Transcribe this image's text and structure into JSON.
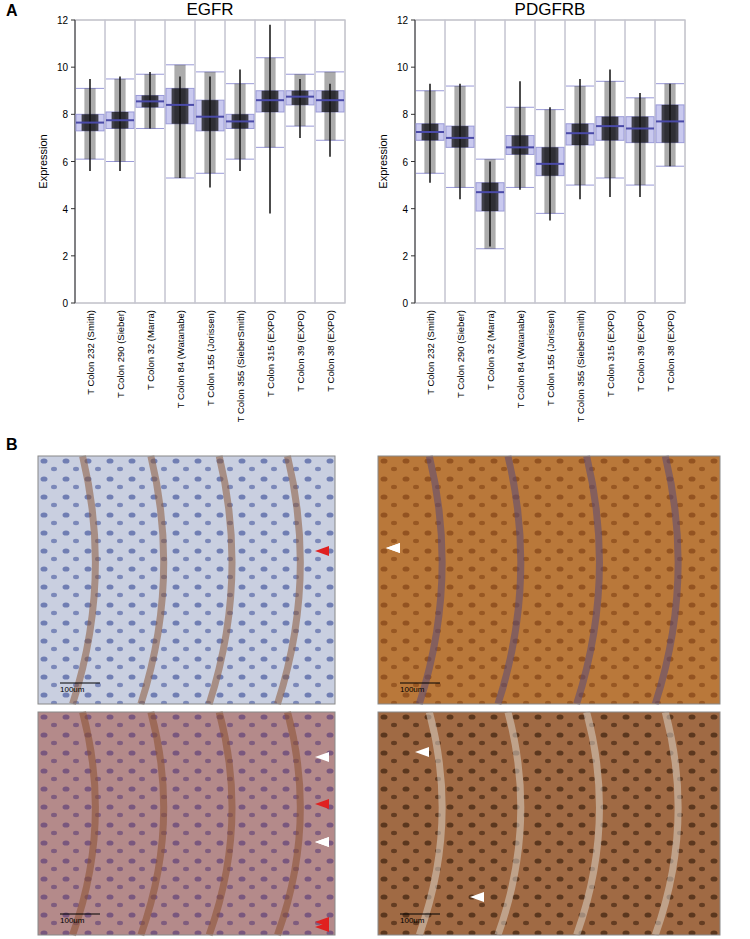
{
  "panel_labels": [
    "A",
    "B"
  ],
  "chart_data": [
    {
      "type": "box",
      "title": "EGFR",
      "y_label": "Expression",
      "categories": [
        "T Colon 232 (Smith)",
        "T Colon 290 (Sieber)",
        "T Colon 32 (Marra)",
        "T Colon 84 (Watanabe)",
        "T Colon 155 (Jorissen)",
        "T Colon 355 (SieberSmith)",
        "T Colon 315 (EXPO)",
        "T Colon 39 (EXPO)",
        "T Colon 38 (EXPO)"
      ],
      "color": "#c9c9ef",
      "ylim": [
        0,
        12
      ],
      "yticks": [
        0,
        2,
        4,
        6,
        8,
        10,
        12
      ],
      "boxes": {
        "median": [
          7.65,
          7.75,
          8.55,
          8.4,
          7.9,
          7.7,
          8.6,
          8.75,
          8.6
        ],
        "q1": [
          7.3,
          7.4,
          8.3,
          7.6,
          7.3,
          7.4,
          8.1,
          8.4,
          8.1
        ],
        "q3": [
          8.0,
          8.1,
          8.8,
          9.1,
          8.6,
          8.0,
          9.0,
          9.0,
          9.0
        ],
        "low": [
          6.1,
          6.0,
          7.4,
          5.3,
          5.5,
          6.1,
          6.6,
          7.5,
          6.9
        ],
        "high": [
          9.1,
          9.5,
          9.7,
          10.1,
          9.8,
          9.3,
          10.4,
          9.7,
          9.8
        ],
        "min": [
          5.6,
          5.6,
          7.4,
          5.3,
          4.9,
          5.6,
          3.8,
          7.0,
          6.2
        ],
        "max": [
          9.5,
          9.6,
          9.8,
          9.6,
          9.6,
          9.9,
          11.8,
          9.5,
          9.3
        ]
      }
    },
    {
      "type": "box",
      "title": "PDGFRB",
      "y_label": "Expression",
      "categories": [
        "T Colon 232 (Smith)",
        "T Colon 290 (Sieber)",
        "T Colon 32 (Marra)",
        "T Colon 84 (Watanabe)",
        "T Colon 155 (Jorissen)",
        "T Colon 355 (SieberSmith)",
        "T Colon 315 (EXPO)",
        "T Colon 39 (EXPO)",
        "T Colon 38 (EXPO)"
      ],
      "color": "#c9c9ef",
      "ylim": [
        0,
        12
      ],
      "yticks": [
        0,
        2,
        4,
        6,
        8,
        10,
        12
      ],
      "boxes": {
        "median": [
          7.25,
          7.0,
          4.7,
          6.6,
          5.9,
          7.2,
          7.5,
          7.4,
          7.7
        ],
        "q1": [
          6.9,
          6.6,
          3.9,
          6.3,
          5.4,
          6.7,
          6.9,
          6.8,
          6.8
        ],
        "q3": [
          7.6,
          7.5,
          5.1,
          7.1,
          6.6,
          7.6,
          7.9,
          7.9,
          8.4
        ],
        "low": [
          5.5,
          4.9,
          2.3,
          4.9,
          3.8,
          5.0,
          5.3,
          5.0,
          5.8
        ],
        "high": [
          9.0,
          9.2,
          6.1,
          8.3,
          8.2,
          9.2,
          9.4,
          8.7,
          9.3
        ],
        "min": [
          5.1,
          4.4,
          2.4,
          4.8,
          3.5,
          4.4,
          4.5,
          4.5,
          5.8
        ],
        "max": [
          9.3,
          9.3,
          6.0,
          9.4,
          8.3,
          9.5,
          9.9,
          8.9,
          9.3
        ]
      }
    }
  ],
  "micrographs": [
    {
      "scale_bar": "100um"
    },
    {
      "scale_bar": "100um"
    },
    {
      "scale_bar": "100um"
    },
    {
      "scale_bar": "100um"
    }
  ]
}
